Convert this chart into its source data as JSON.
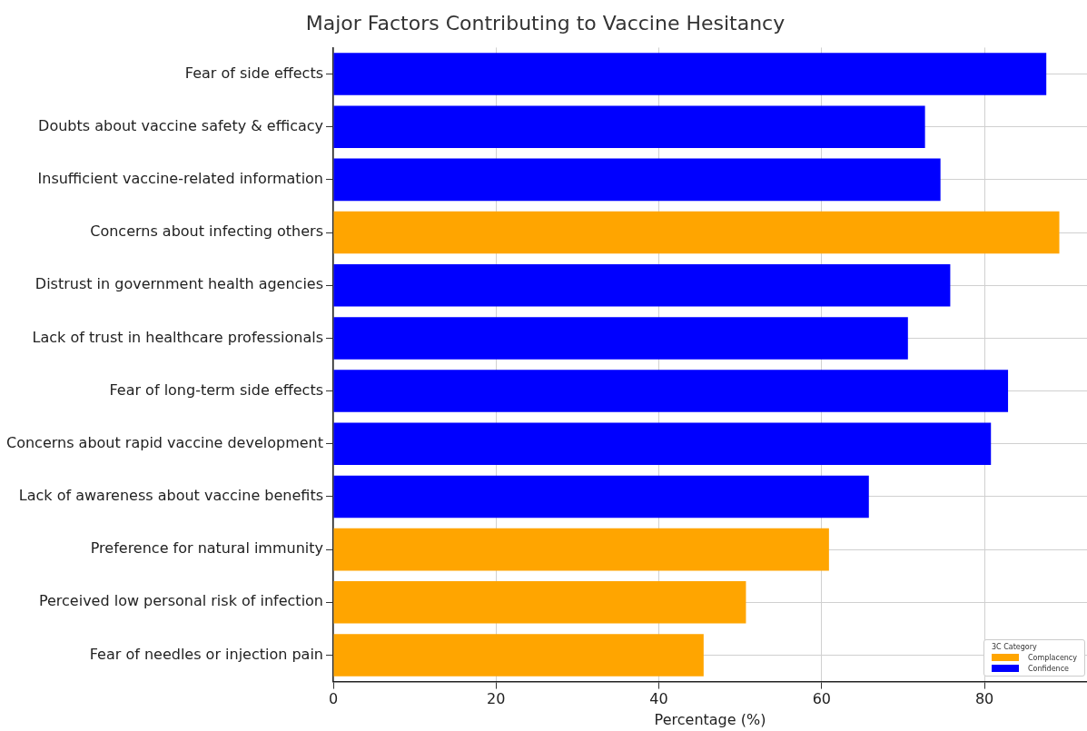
{
  "chart_data": {
    "type": "bar",
    "orientation": "horizontal",
    "title": "Major Factors Contributing to Vaccine Hesitancy",
    "xlabel": "Percentage (%)",
    "legend_title": "3C Category",
    "legend": "bottom right",
    "grid": true,
    "categories": [
      "Fear of side effects",
      "Doubts about vaccine safety & efficacy",
      "Insufficient vaccine-related information",
      "Concerns about infecting others",
      "Distrust in government health agencies",
      "Lack of trust in healthcare professionals",
      "Fear of long-term side effects",
      "Concerns about rapid vaccine development",
      "Lack of awareness about vaccine benefits",
      "Preference for natural immunity",
      "Perceived low personal risk of infection",
      "Fear of needles or injection pain"
    ],
    "series": [
      {
        "name": "Complacency",
        "color": "#ffa500",
        "values": [
          null,
          null,
          null,
          89.2,
          null,
          null,
          null,
          null,
          null,
          60.9,
          50.7,
          45.5
        ]
      },
      {
        "name": "Confidence",
        "color": "#0000ff",
        "values": [
          87.6,
          72.7,
          74.6,
          null,
          75.8,
          70.6,
          82.9,
          80.8,
          65.8,
          null,
          null,
          null
        ]
      }
    ],
    "xlim": [
      0,
      92.6
    ],
    "xticks": [
      0,
      20,
      40,
      60,
      80
    ]
  }
}
